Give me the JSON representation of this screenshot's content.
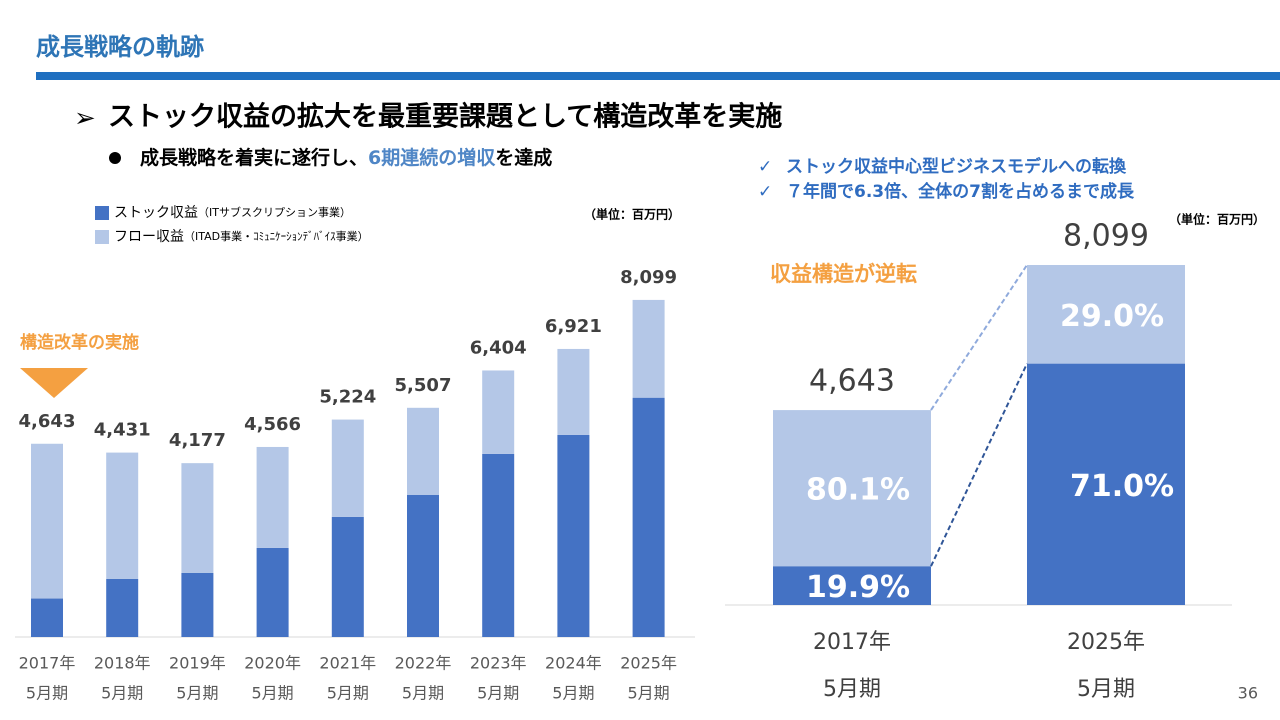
{
  "header": {
    "title": "成長戦略の軌跡",
    "headline": "ストック収益の拡大を最重要課題として構造改革を実施",
    "bullet": [
      "成長戦略を着実に遂行し、",
      "6期連続の増収",
      "を達成"
    ],
    "checks": [
      "ストック収益中心型ビジネスモデルへの転換",
      "７年間で6.3倍、全体の7割を占めるまで成長"
    ],
    "page": "36"
  },
  "chart_data": [
    {
      "type": "bar",
      "stacked": true,
      "unit": "（単位：百万円）",
      "annotation": "構造改革の実施",
      "categories": [
        [
          "2017年",
          "5月期"
        ],
        [
          "2018年",
          "5月期"
        ],
        [
          "2019年",
          "5月期"
        ],
        [
          "2020年",
          "5月期"
        ],
        [
          "2021年",
          "5月期"
        ],
        [
          "2022年",
          "5月期"
        ],
        [
          "2023年",
          "5月期"
        ],
        [
          "2024年",
          "5月期"
        ],
        [
          "2025年",
          "5月期"
        ]
      ],
      "series": [
        {
          "name": "ストック収益",
          "detail": "（ITサブスクリプション事業）",
          "color": "#4472c4",
          "values": [
            924,
            1394,
            1538,
            2139,
            2884,
            3412,
            4398,
            4854,
            5750
          ]
        },
        {
          "name": "フロー収益",
          "detail": "（ITAD事業・ｺﾐｭﾆｹｰｼｮﾝﾃﾞﾊﾞｲｽ事業）",
          "color": "#b4c7e7",
          "values": [
            3719,
            3037,
            2639,
            2427,
            2340,
            2095,
            2006,
            2067,
            2349
          ]
        }
      ],
      "totals": [
        4643,
        4431,
        4177,
        4566,
        5224,
        5507,
        6404,
        6921,
        8099
      ],
      "totals_labels": [
        "4,643",
        "4,431",
        "4,177",
        "4,566",
        "5,224",
        "5,507",
        "6,404",
        "6,921",
        "8,099"
      ]
    },
    {
      "type": "percent_bar",
      "stacked": true,
      "unit": "（単位：百万円）",
      "annotation": "収益構造が逆転",
      "categories": [
        [
          "2017年",
          "5月期"
        ],
        [
          "2025年",
          "5月期"
        ]
      ],
      "series": [
        {
          "color": "#4472c4",
          "values": [
            19.9,
            71.0
          ],
          "value_labels": [
            "19.9%",
            "71.0%"
          ]
        },
        {
          "color": "#b4c7e7",
          "values": [
            80.1,
            29.0
          ],
          "value_labels": [
            "80.1%",
            "29.0%"
          ]
        }
      ],
      "totals": [
        4643,
        8099
      ],
      "totals_labels": [
        "4,643",
        "8,099"
      ]
    }
  ]
}
